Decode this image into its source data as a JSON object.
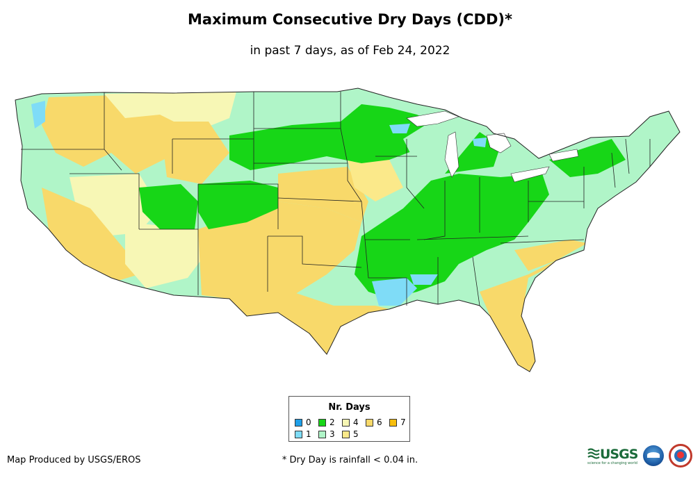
{
  "title": "Maximum Consecutive Dry Days (CDD)*",
  "subtitle": "in past 7 days, as of Feb 24, 2022",
  "legend": {
    "title": "Nr. Days",
    "items": [
      {
        "label": "0",
        "color": "#1e9fe8"
      },
      {
        "label": "1",
        "color": "#7fdcf7"
      },
      {
        "label": "2",
        "color": "#17d617"
      },
      {
        "label": "3",
        "color": "#b0f5c8"
      },
      {
        "label": "4",
        "color": "#f7f7b5"
      },
      {
        "label": "5",
        "color": "#fbe98a"
      },
      {
        "label": "6",
        "color": "#f8d96a"
      },
      {
        "label": "7",
        "color": "#f7be0d"
      }
    ]
  },
  "credit": "Map Produced by USGS/EROS",
  "footnote": "* Dry Day is rainfall < 0.04 in.",
  "logos": {
    "usgs_text": "USGS",
    "usgs_tagline": "science for a changing world"
  }
}
